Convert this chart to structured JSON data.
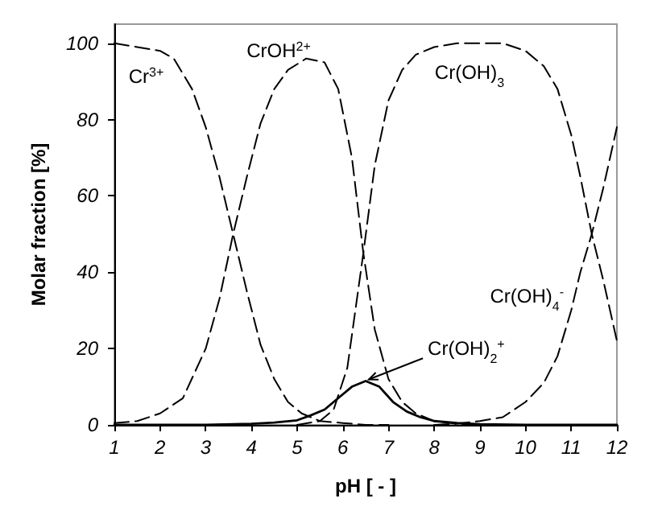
{
  "chart_data": {
    "type": "line",
    "xlabel": "pH [ - ]",
    "ylabel": "Molar fraction [%]",
    "xlim": [
      1,
      12
    ],
    "xticks": [
      1,
      2,
      3,
      4,
      5,
      6,
      7,
      8,
      9,
      10,
      11,
      12
    ],
    "ylim": [
      0,
      105
    ],
    "yticks": [
      0,
      20,
      40,
      60,
      80,
      100
    ],
    "grid": false,
    "legend": false,
    "series": [
      {
        "name": "Cr$^{3+}$",
        "color": "#000000",
        "line_style": "dashed",
        "x": [
          1,
          1.5,
          2,
          2.3,
          2.7,
          3,
          3.3,
          3.6,
          3.9,
          4.2,
          4.5,
          4.8,
          5.1,
          5.5,
          6,
          6.5,
          7
        ],
        "values": [
          100,
          99,
          98,
          96,
          88,
          78,
          65,
          50,
          35,
          21,
          12,
          6,
          3,
          1,
          0.5,
          0,
          0
        ]
      },
      {
        "name": "CrOH$^{2+}$",
        "color": "#000000",
        "line_style": "dashed",
        "x": [
          1,
          1.5,
          2,
          2.5,
          3,
          3.3,
          3.6,
          3.9,
          4.2,
          4.5,
          4.8,
          5.2,
          5.6,
          5.9,
          6.2,
          6.45,
          6.7,
          7,
          7.3,
          7.6,
          8,
          8.5,
          9
        ],
        "values": [
          0.5,
          1,
          3,
          7,
          20,
          33,
          50,
          65,
          79,
          88,
          93,
          96,
          95,
          88,
          70,
          45,
          25,
          12,
          6,
          3,
          1,
          0.3,
          0
        ]
      },
      {
        "name": "Cr(OH)$_{3}$",
        "color": "#000000",
        "line_style": "dashed",
        "x": [
          5,
          5.5,
          5.8,
          6.1,
          6.45,
          6.7,
          7,
          7.3,
          7.6,
          8,
          8.5,
          9,
          9.5,
          10,
          10.4,
          10.7,
          11,
          11.2,
          11.45,
          11.7,
          12
        ],
        "values": [
          0,
          1,
          4,
          15,
          45,
          68,
          85,
          93,
          97,
          99,
          100,
          100,
          100,
          98,
          94,
          88,
          76,
          65,
          50,
          38,
          22
        ]
      },
      {
        "name": "Cr(OH)$_{4}$$^{-}$",
        "color": "#000000",
        "line_style": "dashed",
        "x": [
          8,
          8.5,
          9,
          9.5,
          10,
          10.4,
          10.7,
          11,
          11.2,
          11.45,
          11.7,
          12
        ],
        "values": [
          0,
          0.3,
          1,
          2,
          6,
          11,
          18,
          30,
          40,
          50,
          62,
          78
        ]
      },
      {
        "name": "Cr(OH)$_{2}$$^{+}$",
        "color": "#000000",
        "line_style": "solid",
        "x": [
          1,
          3,
          4,
          4.5,
          5,
          5.3,
          5.6,
          5.9,
          6.2,
          6.5,
          6.8,
          7.1,
          7.4,
          7.7,
          8,
          8.5,
          9,
          10,
          12
        ],
        "values": [
          0,
          0,
          0.3,
          0.6,
          1.2,
          2.5,
          4,
          7,
          10,
          11.5,
          10,
          6,
          3.5,
          2,
          1,
          0.5,
          0.2,
          0,
          0
        ]
      }
    ]
  }
}
